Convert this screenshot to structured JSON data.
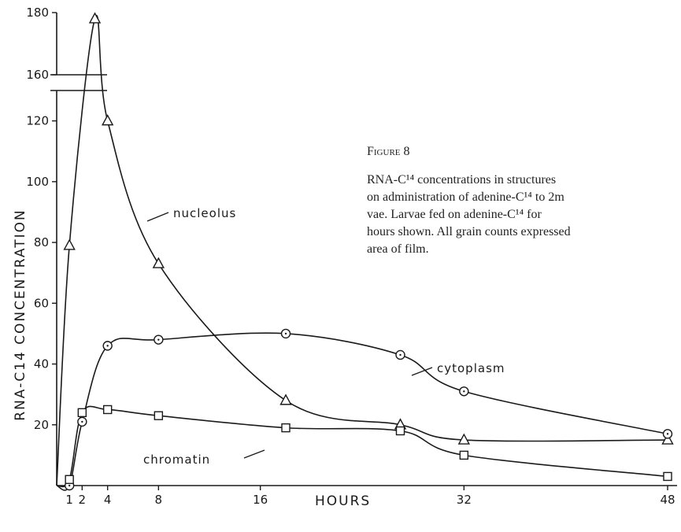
{
  "chart_data": {
    "type": "line",
    "xlabel": "HOURS",
    "ylabel": "RNA-C14 CONCENTRATION",
    "x_ticks": [
      "1",
      "2",
      "4",
      "8",
      "16",
      "32",
      "48"
    ],
    "y_ticks_lower": [
      "20",
      "40",
      "60",
      "80",
      "100",
      "120"
    ],
    "y_ticks_upper": [
      "160",
      "180"
    ],
    "axis_break": [
      130,
      160
    ],
    "series": [
      {
        "name": "nucleolus",
        "marker": "triangle",
        "x": [
          1,
          3,
          4,
          8,
          18,
          27,
          32,
          48
        ],
        "y": [
          79,
          178,
          120,
          73,
          28,
          20,
          15,
          15
        ]
      },
      {
        "name": "cytoplasm",
        "marker": "circle",
        "x": [
          1,
          2,
          4,
          8,
          18,
          27,
          32,
          48
        ],
        "y": [
          0,
          21,
          46,
          48,
          50,
          43,
          31,
          17
        ]
      },
      {
        "name": "chromatin",
        "marker": "square",
        "x": [
          1,
          2,
          4,
          8,
          18,
          27,
          32,
          48
        ],
        "y": [
          2,
          24,
          25,
          23,
          19,
          18,
          10,
          3
        ]
      }
    ]
  },
  "caption": {
    "title": "Figure 8",
    "lines": [
      "RNA-C¹⁴ concentrations in structures",
      "on administration of adenine-C¹⁴ to 2m",
      "vae. Larvae fed on adenine-C¹⁴ for",
      "hours shown. All grain counts expressed",
      "area of film."
    ]
  }
}
